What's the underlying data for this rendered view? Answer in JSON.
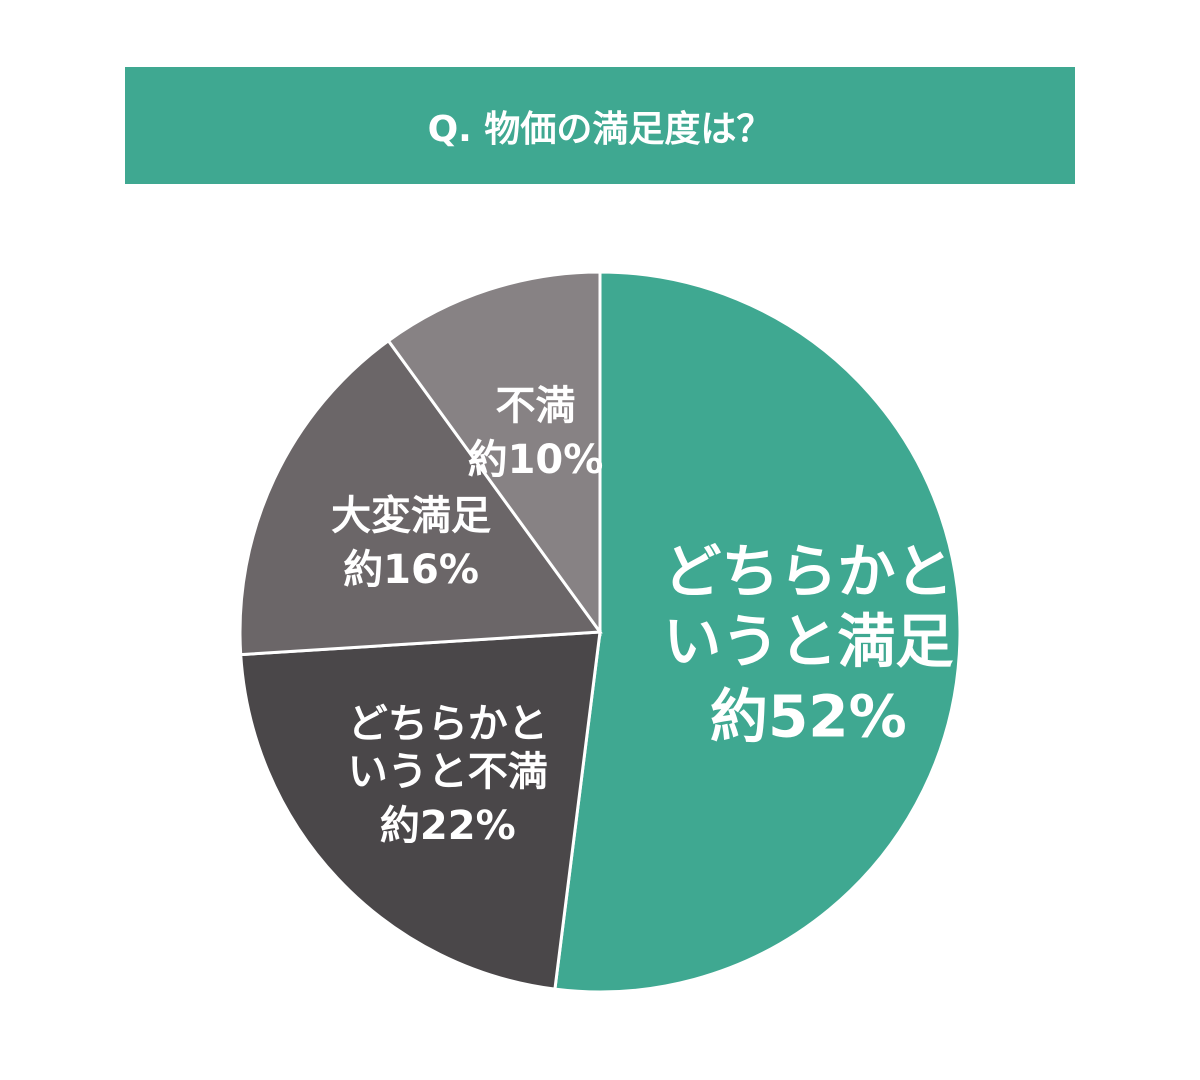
{
  "chart_data": {
    "type": "pie",
    "title": "Q. 物価の満足度は？",
    "categories": [
      "どちらかというと満足",
      "どちらかというと不満",
      "大変満足",
      "不満"
    ],
    "values": [
      52,
      22,
      16,
      10
    ],
    "value_labels": [
      "約52%",
      "約22%",
      "約16%",
      "約10%"
    ],
    "colors": [
      "#3fa891",
      "#4a4749",
      "#6b6668",
      "#878284"
    ]
  }
}
